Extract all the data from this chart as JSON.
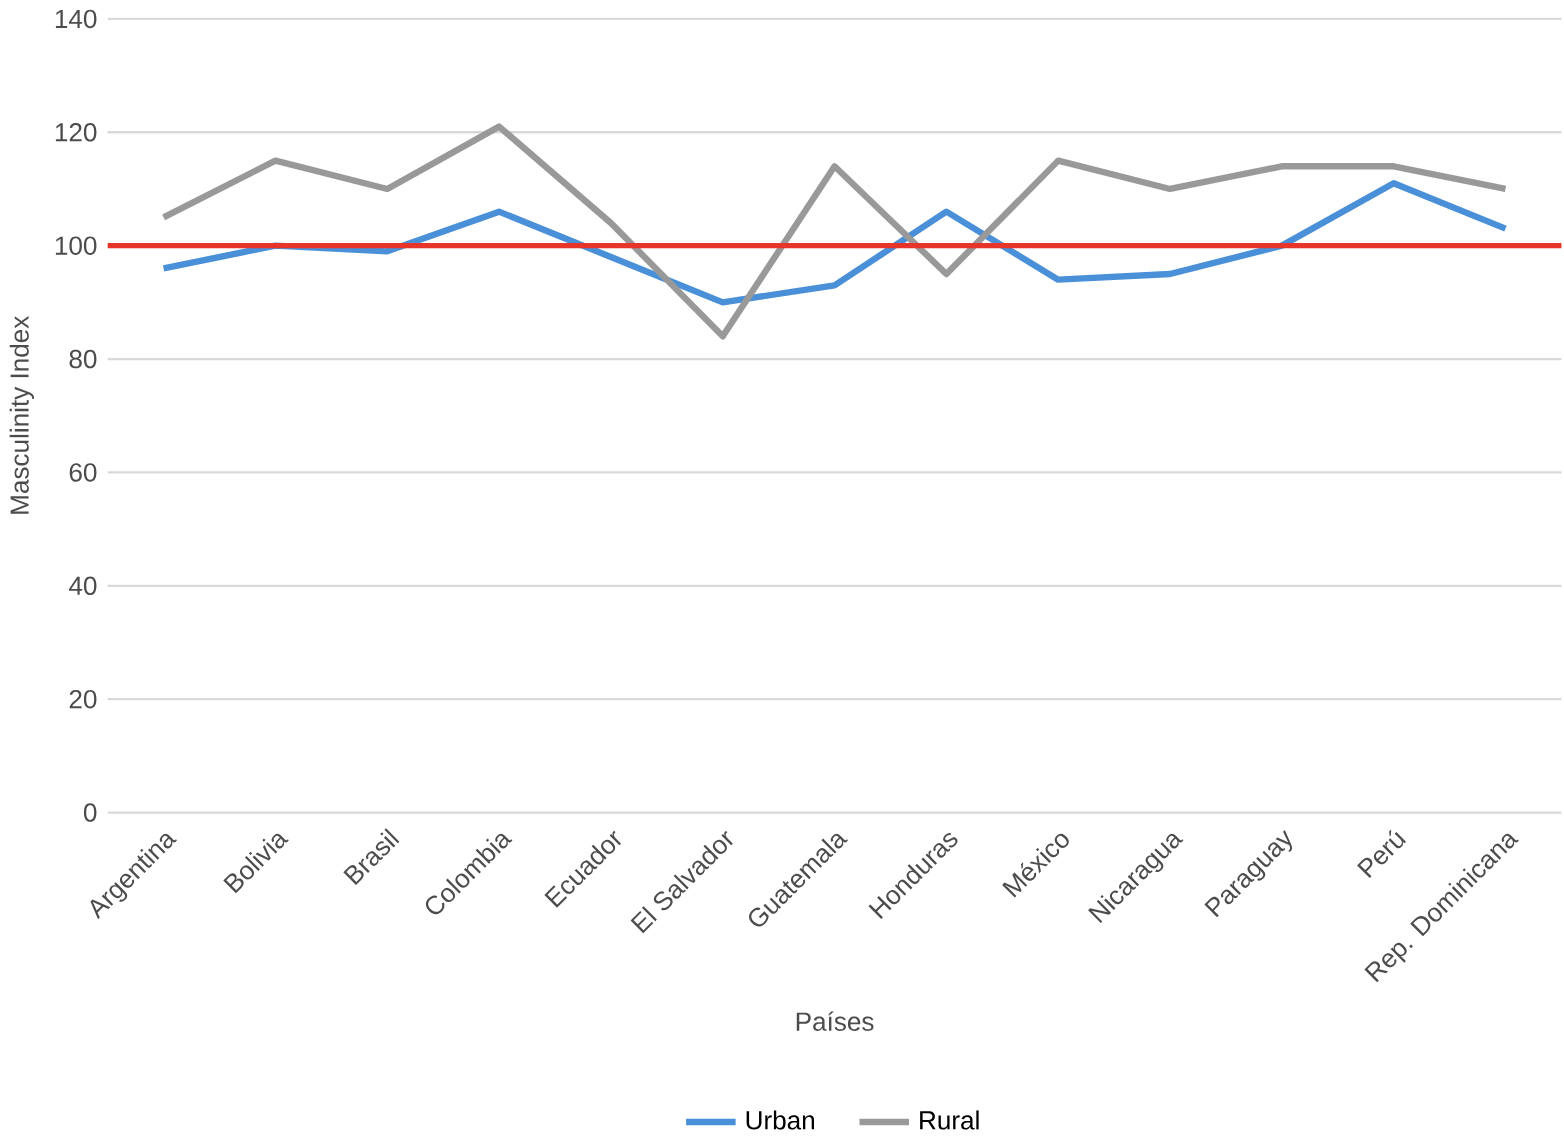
{
  "chart_data": {
    "type": "line",
    "xlabel": "Países",
    "ylabel": "Masculinity Index",
    "categories": [
      "Argentina",
      "Bolivia",
      "Brasil",
      "Colombia",
      "Ecuador",
      "El Salvador",
      "Guatemala",
      "Honduras",
      "México",
      "Nicaragua",
      "Paraguay",
      "Perú",
      "Rep. Dominicana"
    ],
    "series": [
      {
        "name": "Urban",
        "color": "#4a90d9",
        "values": [
          96,
          100,
          99,
          106,
          98,
          90,
          93,
          106,
          94,
          95,
          100,
          111,
          103
        ]
      },
      {
        "name": "Rural",
        "color": "#999999",
        "values": [
          105,
          115,
          110,
          121,
          104,
          84,
          114,
          95,
          115,
          110,
          114,
          114,
          110
        ]
      }
    ],
    "ref_lines": [
      {
        "axis": "y",
        "value": 100,
        "color": "#e8352a"
      }
    ],
    "ylim": [
      0,
      140
    ],
    "yticks": [
      0,
      20,
      40,
      60,
      80,
      100,
      120,
      140
    ],
    "grid": "y",
    "legend": "bottom",
    "marker": "none",
    "line_style": "solid"
  }
}
